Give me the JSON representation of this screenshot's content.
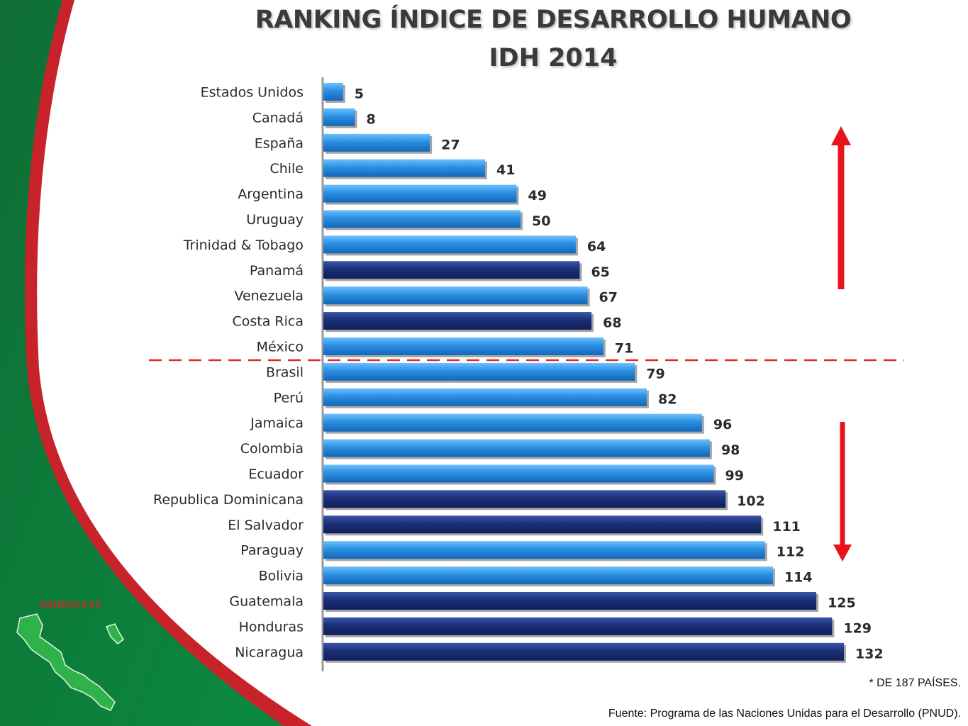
{
  "title_line1": "RANKING ÍNDICE DE DESARROLLO HUMANO",
  "title_line2": "IDH 2014",
  "note": "* DE 187 PAÍSES.",
  "source": "Fuente: Programa de las  Naciones Unidas para el Desarrollo (PNUD).",
  "org_label": "ORDECCCAC",
  "colors": {
    "green": "#0e7a3c",
    "red": "#c8232b",
    "bar_light": "#2a8fe0",
    "bar_dark": "#1a2f78",
    "arrow": "#e8141c"
  },
  "chart_data": {
    "type": "bar",
    "orientation": "horizontal",
    "categories": [
      "Estados Unidos",
      "Canadá",
      "España",
      "Chile",
      "Argentina",
      "Uruguay",
      "Trinidad & Tobago",
      "Panamá",
      "Venezuela",
      "Costa Rica",
      "México",
      "Brasil",
      "Perú",
      "Jamaica",
      "Colombia",
      "Ecuador",
      "Republica Dominicana",
      "El Salvador",
      "Paraguay",
      "Bolivia",
      "Guatemala",
      "Honduras",
      "Nicaragua"
    ],
    "values": [
      5,
      8,
      27,
      41,
      49,
      50,
      64,
      65,
      67,
      68,
      71,
      79,
      82,
      96,
      98,
      99,
      102,
      111,
      112,
      114,
      125,
      129,
      132
    ],
    "highlighted": [
      "Panamá",
      "Costa Rica",
      "Republica Dominicana",
      "El Salvador",
      "Guatemala",
      "Honduras",
      "Nicaragua"
    ],
    "xlim": [
      0,
      132
    ],
    "grid": false,
    "legend": "none",
    "annotations": [
      "dashed red separator between México and Brasil",
      "red up arrow (top)",
      "red down arrow (bottom)"
    ]
  }
}
